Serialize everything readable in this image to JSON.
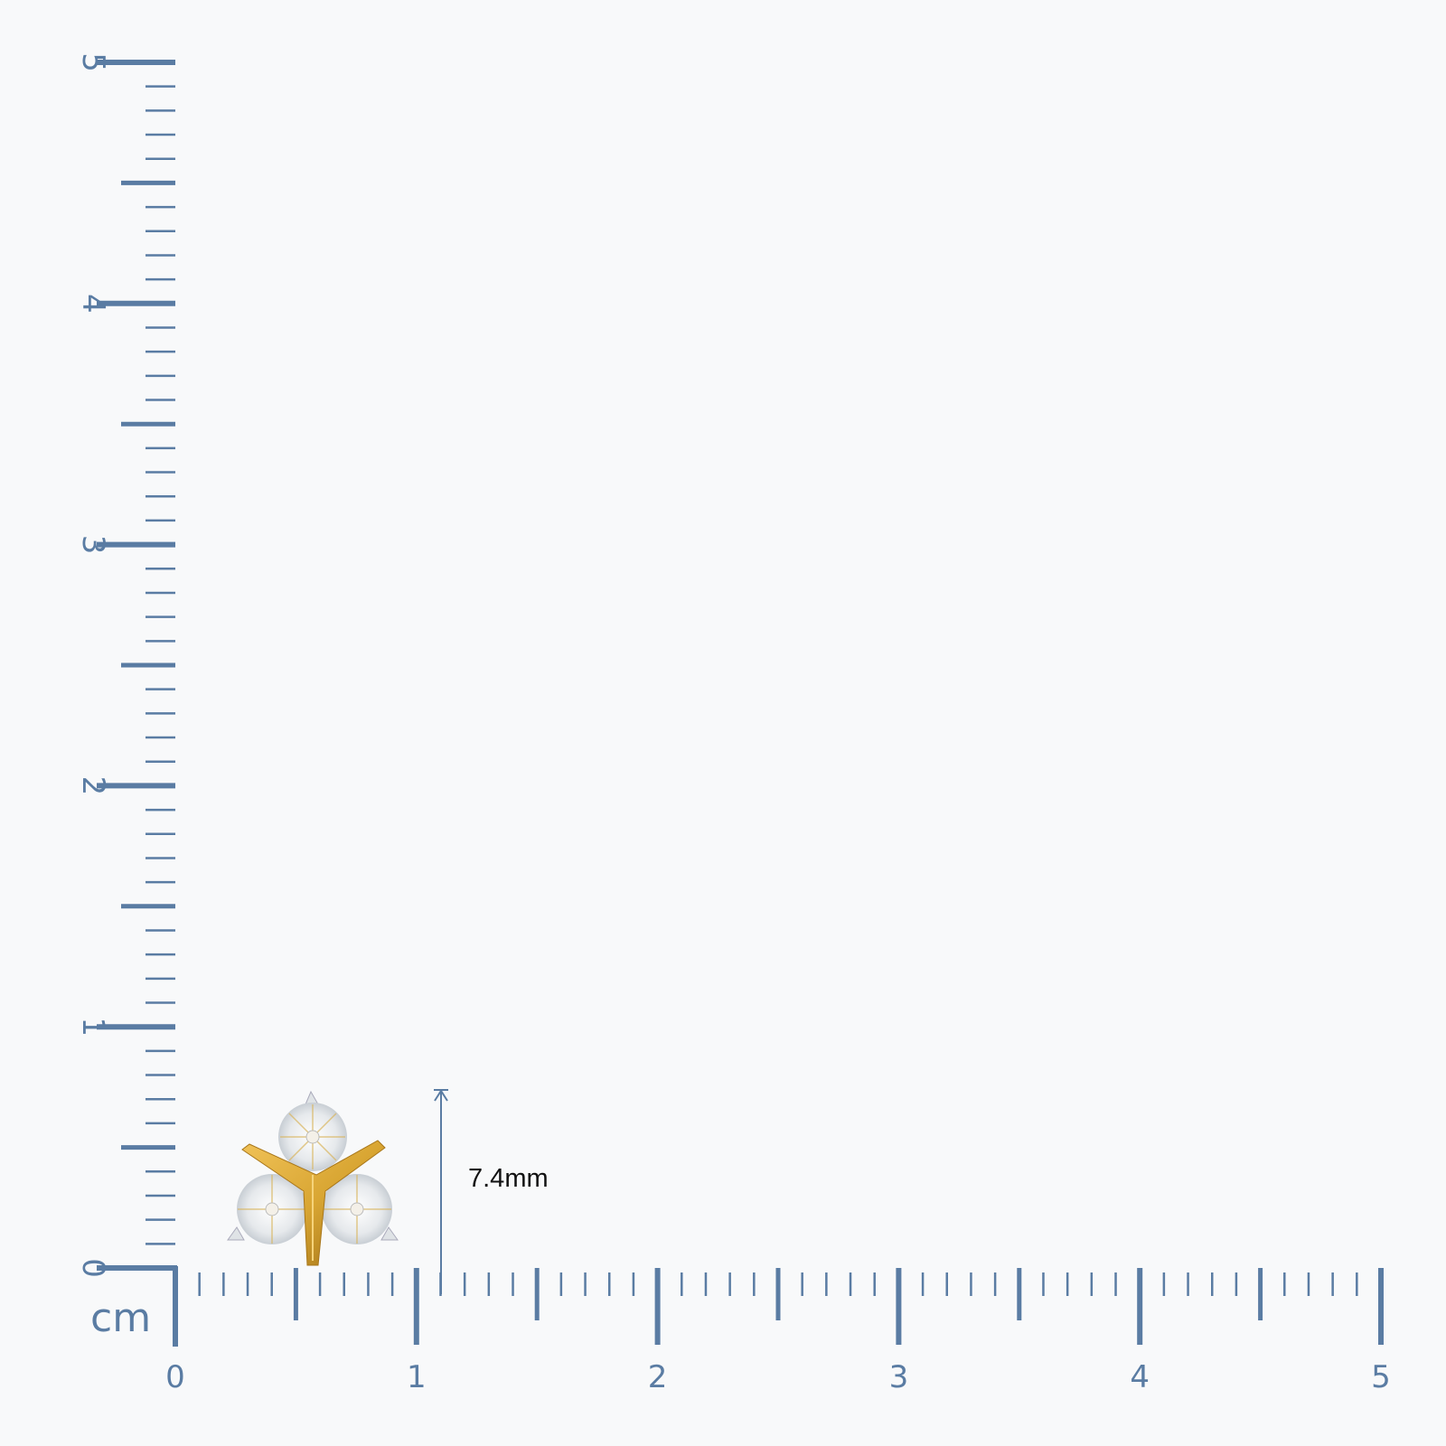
{
  "ruler": {
    "unit": "cm",
    "x_labels": [
      "0",
      "1",
      "2",
      "3",
      "4",
      "5"
    ],
    "y_labels": [
      "0",
      "1",
      "2",
      "3",
      "4",
      "5"
    ],
    "range_cm": [
      0,
      5
    ],
    "minor_step_mm": 1,
    "color": "#5a7ca3"
  },
  "product": {
    "name_icon": "three-stone-earring-image",
    "height_label": "7.4mm",
    "height_mm": 7.4,
    "metal_color": "#d9a633",
    "stone_color": "#e8ebee"
  }
}
